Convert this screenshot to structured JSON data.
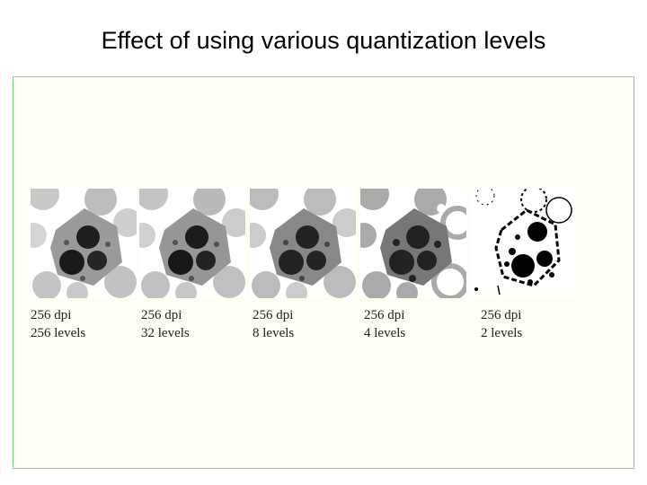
{
  "slide": {
    "title": "Effect of using various quantization levels",
    "frame_color": "#7ed47e",
    "frame_bg": "#fefef5"
  },
  "panels": [
    {
      "dpi": "256 dpi",
      "levels": "256 levels",
      "gray_levels": 256
    },
    {
      "dpi": "256 dpi",
      "levels": "32 levels",
      "gray_levels": 32
    },
    {
      "dpi": "256 dpi",
      "levels": "8 levels",
      "gray_levels": 8
    },
    {
      "dpi": "256 dpi",
      "levels": "4 levels",
      "gray_levels": 4
    },
    {
      "dpi": "256 dpi",
      "levels": "2 levels",
      "gray_levels": 2
    }
  ]
}
